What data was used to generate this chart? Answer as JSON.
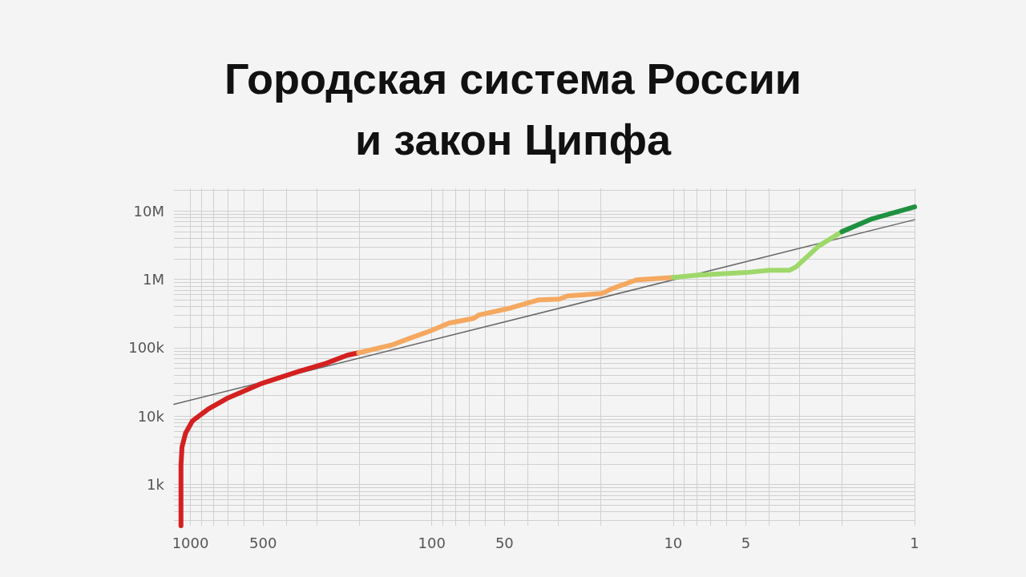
{
  "chart_data": {
    "type": "line",
    "title": "Городская система России\nи закон Ципфа",
    "log": "xy",
    "grid": true,
    "marker": "none",
    "line_style": "solid",
    "xlim": [
      1170,
      1
    ],
    "ylim": [
      250,
      21500000
    ],
    "xticks": [
      {
        "value": 1000,
        "label": "1000"
      },
      {
        "value": 900,
        "label": null
      },
      {
        "value": 800,
        "label": null
      },
      {
        "value": 700,
        "label": null
      },
      {
        "value": 600,
        "label": null
      },
      {
        "value": 500,
        "label": "500"
      },
      {
        "value": 400,
        "label": null
      },
      {
        "value": 300,
        "label": null
      },
      {
        "value": 200,
        "label": null
      },
      {
        "value": 100,
        "label": "100"
      },
      {
        "value": 90,
        "label": null
      },
      {
        "value": 80,
        "label": null
      },
      {
        "value": 70,
        "label": null
      },
      {
        "value": 60,
        "label": null
      },
      {
        "value": 50,
        "label": "50"
      },
      {
        "value": 40,
        "label": null
      },
      {
        "value": 30,
        "label": null
      },
      {
        "value": 20,
        "label": null
      },
      {
        "value": 10,
        "label": "10"
      },
      {
        "value": 9,
        "label": null
      },
      {
        "value": 8,
        "label": null
      },
      {
        "value": 7,
        "label": null
      },
      {
        "value": 6,
        "label": null
      },
      {
        "value": 5,
        "label": "5"
      },
      {
        "value": 4,
        "label": null
      },
      {
        "value": 3,
        "label": null
      },
      {
        "value": 2,
        "label": null
      },
      {
        "value": 1,
        "label": "1"
      }
    ],
    "yticks": [
      {
        "value": 300,
        "label": null
      },
      {
        "value": 400,
        "label": null
      },
      {
        "value": 500,
        "label": null
      },
      {
        "value": 600,
        "label": null
      },
      {
        "value": 700,
        "label": null
      },
      {
        "value": 800,
        "label": null
      },
      {
        "value": 900,
        "label": null
      },
      {
        "value": 1000,
        "label": "1k"
      },
      {
        "value": 2000,
        "label": null
      },
      {
        "value": 3000,
        "label": null
      },
      {
        "value": 4000,
        "label": null
      },
      {
        "value": 5000,
        "label": null
      },
      {
        "value": 6000,
        "label": null
      },
      {
        "value": 7000,
        "label": null
      },
      {
        "value": 8000,
        "label": null
      },
      {
        "value": 9000,
        "label": null
      },
      {
        "value": 10000,
        "label": "10k"
      },
      {
        "value": 20000,
        "label": null
      },
      {
        "value": 30000,
        "label": null
      },
      {
        "value": 40000,
        "label": null
      },
      {
        "value": 50000,
        "label": null
      },
      {
        "value": 60000,
        "label": null
      },
      {
        "value": 70000,
        "label": null
      },
      {
        "value": 80000,
        "label": null
      },
      {
        "value": 90000,
        "label": null
      },
      {
        "value": 100000,
        "label": "100k"
      },
      {
        "value": 200000,
        "label": null
      },
      {
        "value": 300000,
        "label": null
      },
      {
        "value": 400000,
        "label": null
      },
      {
        "value": 500000,
        "label": null
      },
      {
        "value": 600000,
        "label": null
      },
      {
        "value": 700000,
        "label": null
      },
      {
        "value": 800000,
        "label": null
      },
      {
        "value": 900000,
        "label": null
      },
      {
        "value": 1000000,
        "label": "1M"
      },
      {
        "value": 2000000,
        "label": null
      },
      {
        "value": 3000000,
        "label": null
      },
      {
        "value": 4000000,
        "label": null
      },
      {
        "value": 5000000,
        "label": null
      },
      {
        "value": 6000000,
        "label": null
      },
      {
        "value": 7000000,
        "label": null
      },
      {
        "value": 8000000,
        "label": null
      },
      {
        "value": 9000000,
        "label": null
      },
      {
        "value": 10000000,
        "label": "10M"
      },
      {
        "value": 20000000,
        "label": null
      }
    ],
    "series": [
      {
        "color": "#d42020",
        "x": [
          1094,
          1094,
          1083,
          1047,
          982,
          843,
          707,
          505,
          355,
          274,
          224,
          201
        ],
        "values": [
          250,
          1920,
          3570,
          5650,
          8470,
          12700,
          18100,
          30200,
          45300,
          59300,
          77800,
          84400
        ]
      },
      {
        "color": "#f5a860",
        "x": [
          201,
          145,
          124,
          100,
          85,
          67,
          64,
          47,
          36,
          29.6,
          27.4,
          19.7,
          17.9,
          14.2,
          10
        ],
        "values": [
          84400,
          111000,
          137000,
          180000,
          229000,
          270000,
          301000,
          383000,
          502000,
          515000,
          574000,
          624000,
          733000,
          986000,
          1070000
        ]
      },
      {
        "color": "#9ed86a",
        "x": [
          10,
          7.9,
          5.0,
          4.0,
          3.3,
          3.1,
          2.5,
          2.0
        ],
        "values": [
          1070000,
          1160000,
          1260000,
          1360000,
          1360000,
          1520000,
          3070000,
          4990000
        ]
      },
      {
        "color": "#1f9140",
        "x": [
          2.0,
          1.5,
          1
        ],
        "values": [
          4990000,
          7690000,
          11500000
        ]
      },
      {
        "color": "#666666",
        "x": [
          1170,
          1
        ],
        "values": [
          14900,
          7480000
        ]
      }
    ]
  }
}
